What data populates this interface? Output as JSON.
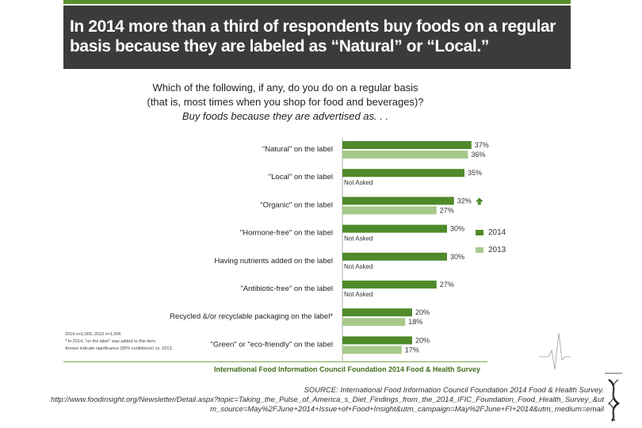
{
  "header": {
    "title": "In 2014 more than a third of respondents buy foods on a regular basis because they are labeled as “Natural” or “Local.”"
  },
  "question": {
    "line1": "Which of the following, if any, do you do on a regular basis",
    "line2": "(that is, most times when you shop for food and beverages)?",
    "line3": "Buy foods because they are advertised as. . ."
  },
  "chart_data": {
    "type": "bar",
    "orientation": "horizontal",
    "categories": [
      "\"Natural\" on the label",
      "\"Local\" on the label",
      "\"Organic\" on the label",
      "\"Hormone-free\" on the label",
      "Having nutrients added on the label",
      "\"Antibiotic-free\" on the label",
      "Recycled &/or recyclable packaging on the label*",
      "\"Green\" or \"eco-friendly\" on the label"
    ],
    "series": [
      {
        "name": "2014",
        "values": [
          37,
          35,
          32,
          30,
          30,
          27,
          20,
          20
        ],
        "labels": [
          "37%",
          "35%",
          "32%",
          "30%",
          "30%",
          "27%",
          "20%",
          "20%"
        ]
      },
      {
        "name": "2013",
        "values": [
          36,
          null,
          27,
          null,
          null,
          null,
          18,
          17
        ],
        "labels": [
          "36%",
          "Not Asked",
          "27%",
          "Not Asked",
          "Not Asked",
          "Not Asked",
          "18%",
          "17%"
        ]
      }
    ],
    "significant_increase": [
      false,
      false,
      true,
      false,
      false,
      false,
      false,
      false
    ],
    "xlim": [
      0,
      50
    ],
    "legend_position": "right",
    "colors": {
      "2014": "#4f8a2a",
      "2013": "#a6c98a"
    }
  },
  "legend": {
    "items": [
      {
        "label": "2014",
        "color": "#4f8a2a"
      },
      {
        "label": "2013",
        "color": "#a6c98a"
      }
    ]
  },
  "notes": {
    "line1": "2014 n=1,005; 2013 n=1,006",
    "line2": "* In 2014, \"on the label\" was added to this item.",
    "line3": "Arrows indicate significance (95% confidence) vs. 2013."
  },
  "footer": {
    "text": "International Food Information Council Foundation 2014 Food & Health Survey"
  },
  "source": {
    "line1": "SOURCE: International Food Information Council Foundation 2014 Food & Health Survey.",
    "line2": "http://www.foodinsight.org/Newsletter/Detail.aspx?topic=Taking_the_Pulse_of_America_s_Diet_Findings_from_the_2014_IFIC_Foundation_Food_Health_Survey_&ut",
    "line3": "m_source=May%2FJune+2014+Issue+of+Food+Insight&utm_campaign=May%2FJune+FI+2014&utm_medium=email"
  }
}
